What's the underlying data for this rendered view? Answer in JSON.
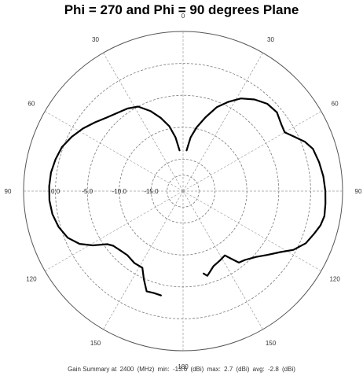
{
  "chart_data": {
    "type": "polar",
    "title": "Phi = 270 and Phi = 90 degrees Plane",
    "angle_labels": [
      "0",
      "30",
      "60",
      "90",
      "120",
      "150",
      "180",
      "150",
      "120",
      "90",
      "60",
      "30"
    ],
    "radial_ticks": [
      {
        "label": "0.0",
        "value": 0
      },
      {
        "label": "-5.0",
        "value": -5
      },
      {
        "label": "-10.0",
        "value": -10
      },
      {
        "label": "-15.0",
        "value": -15
      }
    ],
    "radial_range": [
      -20,
      5
    ],
    "grid": true,
    "series": [
      {
        "color": "#000000",
        "points": [
          {
            "theta": 5,
            "gain": -13.6
          },
          {
            "theta": 8,
            "gain": -11.5
          },
          {
            "theta": 12,
            "gain": -9.8
          },
          {
            "theta": 17,
            "gain": -7.9
          },
          {
            "theta": 22,
            "gain": -5.8
          },
          {
            "theta": 27,
            "gain": -4.3
          },
          {
            "theta": 32,
            "gain": -2.9
          },
          {
            "theta": 38,
            "gain": -1.8
          },
          {
            "theta": 44,
            "gain": -1.0
          },
          {
            "theta": 50,
            "gain": -0.8
          },
          {
            "theta": 56,
            "gain": -1.4
          },
          {
            "theta": 60,
            "gain": -1.6
          },
          {
            "theta": 64,
            "gain": -0.6
          },
          {
            "theta": 68,
            "gain": 0.6
          },
          {
            "theta": 72,
            "gain": 1.4
          },
          {
            "theta": 78,
            "gain": 1.8
          },
          {
            "theta": 84,
            "gain": 2.1
          },
          {
            "theta": 90,
            "gain": 2.3
          },
          {
            "theta": 95,
            "gain": 2.4
          },
          {
            "theta": 100,
            "gain": 2.5
          },
          {
            "theta": 104,
            "gain": 2.2
          },
          {
            "theta": 108,
            "gain": 1.6
          },
          {
            "theta": 113,
            "gain": 0.9
          },
          {
            "theta": 118,
            "gain": -0.4
          },
          {
            "theta": 122,
            "gain": -2.0
          },
          {
            "theta": 127,
            "gain": -3.4
          },
          {
            "theta": 132,
            "gain": -4.6
          },
          {
            "theta": 138,
            "gain": -5.5
          },
          {
            "theta": 142,
            "gain": -5.8
          },
          {
            "theta": 145,
            "gain": -7.2
          },
          {
            "theta": 147,
            "gain": -8.0
          },
          {
            "theta": 152,
            "gain": -7.7
          },
          {
            "theta": 158,
            "gain": -7.3
          },
          {
            "theta": 162,
            "gain": -6.6
          },
          {
            "theta": 164,
            "gain": -6.2
          },
          {
            "theta": 166,
            "gain": -6.7
          }
        ]
      },
      {
        "color": "#000000",
        "points": [
          {
            "theta": 5,
            "gain": -13.6
          },
          {
            "theta": 8,
            "gain": -11.5
          },
          {
            "theta": 12,
            "gain": -9.6
          },
          {
            "theta": 17,
            "gain": -8.0
          },
          {
            "theta": 22,
            "gain": -6.5
          },
          {
            "theta": 28,
            "gain": -5.0
          },
          {
            "theta": 34,
            "gain": -4.4
          },
          {
            "theta": 40,
            "gain": -4.0
          },
          {
            "theta": 46,
            "gain": -3.4
          },
          {
            "theta": 52,
            "gain": -2.5
          },
          {
            "theta": 58,
            "gain": -1.5
          },
          {
            "theta": 64,
            "gain": -0.6
          },
          {
            "theta": 70,
            "gain": 0.2
          },
          {
            "theta": 76,
            "gain": 0.6
          },
          {
            "theta": 82,
            "gain": 0.9
          },
          {
            "theta": 88,
            "gain": 1.0
          },
          {
            "theta": 94,
            "gain": 1.0
          },
          {
            "theta": 100,
            "gain": 0.8
          },
          {
            "theta": 106,
            "gain": 0.3
          },
          {
            "theta": 112,
            "gain": -0.5
          },
          {
            "theta": 117,
            "gain": -1.8
          },
          {
            "theta": 121,
            "gain": -3.5
          },
          {
            "theta": 125,
            "gain": -5.5
          },
          {
            "theta": 128,
            "gain": -6.1
          },
          {
            "theta": 134,
            "gain": -6.5
          },
          {
            "theta": 139,
            "gain": -6.7
          },
          {
            "theta": 146,
            "gain": -6.4
          },
          {
            "theta": 152,
            "gain": -6.4
          },
          {
            "theta": 156,
            "gain": -4.9
          },
          {
            "theta": 160,
            "gain": -3.3
          },
          {
            "theta": 164,
            "gain": -3.4
          },
          {
            "theta": 168,
            "gain": -3.3
          }
        ]
      }
    ]
  },
  "summary": {
    "prefix": "Gain Summary at",
    "frequency": "2400",
    "frequency_unit": "(MHz)",
    "min_label": "min:",
    "min_value": "-13.6",
    "min_unit": "(dBi)",
    "max_label": "max:",
    "max_value": "2.7",
    "max_unit": "(dBi)",
    "avg_label": "avg:",
    "avg_value": "-2.8",
    "avg_unit": "(dBi)"
  }
}
